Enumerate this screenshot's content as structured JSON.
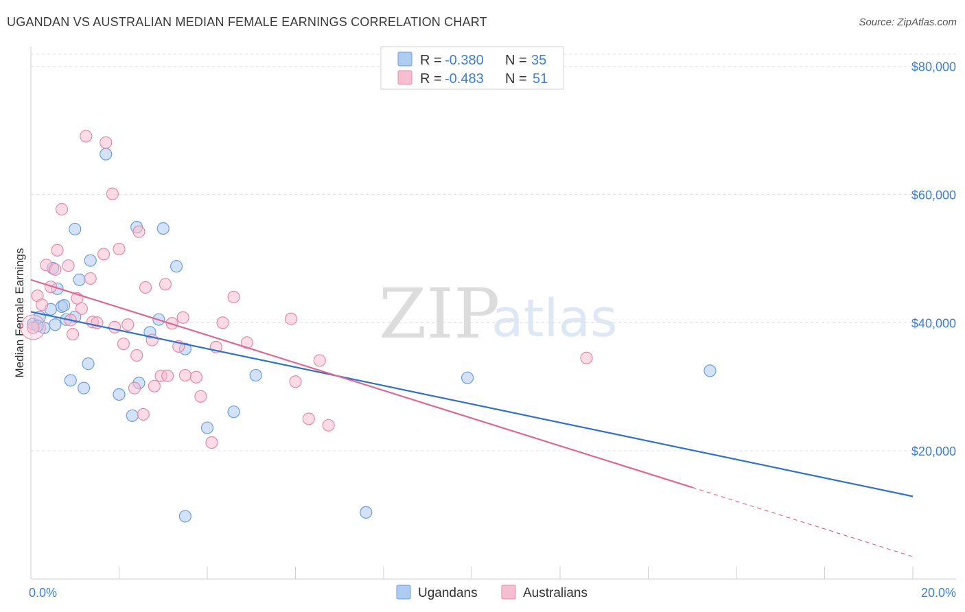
{
  "header": {
    "title": "UGANDAN VS AUSTRALIAN MEDIAN FEMALE EARNINGS CORRELATION CHART",
    "source": "Source: ZipAtlas.com"
  },
  "watermark": {
    "zip": "ZIP",
    "atlas": "atlas"
  },
  "legend": {
    "row1": {
      "r_label": "R =",
      "r_value": "-0.380",
      "n_label": "N =",
      "n_value": "35"
    },
    "row2": {
      "r_label": "R =",
      "r_value": "-0.483",
      "n_label": "N =",
      "n_value": "51"
    }
  },
  "bottom_legend": {
    "ugandans": "Ugandans",
    "australians": "Australians"
  },
  "colors": {
    "ugandans_fill": "#aecbf0",
    "ugandans_stroke": "#6b9ee0",
    "ugandans_line": "#2f6fce",
    "australians_fill": "#f7bdd0",
    "australians_stroke": "#e48aa9",
    "australians_line": "#e06592",
    "tick_text": "#3d7fd3",
    "grid": "#e0e0e0"
  },
  "chart_data": {
    "type": "scatter",
    "title": "UGANDAN VS AUSTRALIAN MEDIAN FEMALE EARNINGS CORRELATION CHART",
    "xlabel": "",
    "ylabel": "Median Female Earnings",
    "xlim": [
      0,
      20
    ],
    "ylim": [
      0,
      82000
    ],
    "x_tick_labels": [
      {
        "value": 0,
        "label": "0.0%"
      },
      {
        "value": 20,
        "label": "20.0%"
      }
    ],
    "y_tick_labels": [
      {
        "value": 20000,
        "label": "$20,000"
      },
      {
        "value": 40000,
        "label": "$40,000"
      },
      {
        "value": 60000,
        "label": "$60,000"
      },
      {
        "value": 80000,
        "label": "$80,000"
      }
    ],
    "grid": true,
    "legend_position": "top-center",
    "series": [
      {
        "name": "Ugandans",
        "r": -0.38,
        "n": 35,
        "trend": {
          "x1": 0,
          "y1": 41700,
          "x2": 20,
          "y2": 12900
        },
        "points": [
          [
            0.05,
            39800
          ],
          [
            0.2,
            40900
          ],
          [
            0.3,
            39200
          ],
          [
            0.45,
            42100
          ],
          [
            0.5,
            48500
          ],
          [
            0.55,
            39700
          ],
          [
            0.6,
            45300
          ],
          [
            0.7,
            42500
          ],
          [
            0.75,
            42700
          ],
          [
            0.8,
            40500
          ],
          [
            0.9,
            31000
          ],
          [
            1.0,
            40900
          ],
          [
            1.0,
            54600
          ],
          [
            1.1,
            46700
          ],
          [
            1.2,
            29800
          ],
          [
            1.3,
            33600
          ],
          [
            1.35,
            49700
          ],
          [
            1.7,
            66300
          ],
          [
            2.0,
            28800
          ],
          [
            2.3,
            25500
          ],
          [
            2.4,
            54900
          ],
          [
            2.45,
            30600
          ],
          [
            2.7,
            38500
          ],
          [
            2.9,
            40500
          ],
          [
            3.0,
            54700
          ],
          [
            3.3,
            48800
          ],
          [
            3.5,
            35900
          ],
          [
            3.5,
            9800
          ],
          [
            4.0,
            23600
          ],
          [
            4.6,
            26100
          ],
          [
            5.1,
            31800
          ],
          [
            7.6,
            10400
          ],
          [
            9.9,
            31400
          ],
          [
            15.4,
            32500
          ],
          [
            0.15,
            39500
          ]
        ]
      },
      {
        "name": "Australians",
        "r": -0.483,
        "n": 51,
        "trend": {
          "x1": 0,
          "y1": 46700,
          "x2": 15,
          "y2": 14300
        },
        "trend_dashed": {
          "x1": 15,
          "y1": 14300,
          "x2": 20,
          "y2": 3500
        },
        "points": [
          [
            0.05,
            39200
          ],
          [
            0.15,
            44200
          ],
          [
            0.25,
            42800
          ],
          [
            0.35,
            49000
          ],
          [
            0.45,
            45600
          ],
          [
            0.55,
            48300
          ],
          [
            0.6,
            51300
          ],
          [
            0.7,
            57700
          ],
          [
            0.85,
            48900
          ],
          [
            0.9,
            40400
          ],
          [
            0.95,
            38200
          ],
          [
            1.05,
            43800
          ],
          [
            1.15,
            42200
          ],
          [
            1.25,
            69100
          ],
          [
            1.35,
            46900
          ],
          [
            1.4,
            40100
          ],
          [
            1.5,
            40000
          ],
          [
            1.65,
            50700
          ],
          [
            1.7,
            68100
          ],
          [
            1.85,
            60100
          ],
          [
            1.9,
            39300
          ],
          [
            2.0,
            51500
          ],
          [
            2.1,
            36700
          ],
          [
            2.2,
            39700
          ],
          [
            2.35,
            29800
          ],
          [
            2.4,
            34900
          ],
          [
            2.45,
            54200
          ],
          [
            2.55,
            25700
          ],
          [
            2.6,
            45500
          ],
          [
            2.75,
            37300
          ],
          [
            2.8,
            30100
          ],
          [
            2.95,
            31700
          ],
          [
            3.05,
            46000
          ],
          [
            3.1,
            31700
          ],
          [
            3.2,
            39900
          ],
          [
            3.35,
            36300
          ],
          [
            3.45,
            40800
          ],
          [
            3.5,
            31800
          ],
          [
            3.75,
            31500
          ],
          [
            3.85,
            28500
          ],
          [
            4.1,
            21300
          ],
          [
            4.2,
            36200
          ],
          [
            4.35,
            40000
          ],
          [
            4.6,
            44000
          ],
          [
            4.9,
            36900
          ],
          [
            5.9,
            40600
          ],
          [
            6.0,
            30800
          ],
          [
            6.3,
            25000
          ],
          [
            6.55,
            34100
          ],
          [
            6.75,
            24000
          ],
          [
            12.6,
            34500
          ]
        ]
      }
    ]
  }
}
